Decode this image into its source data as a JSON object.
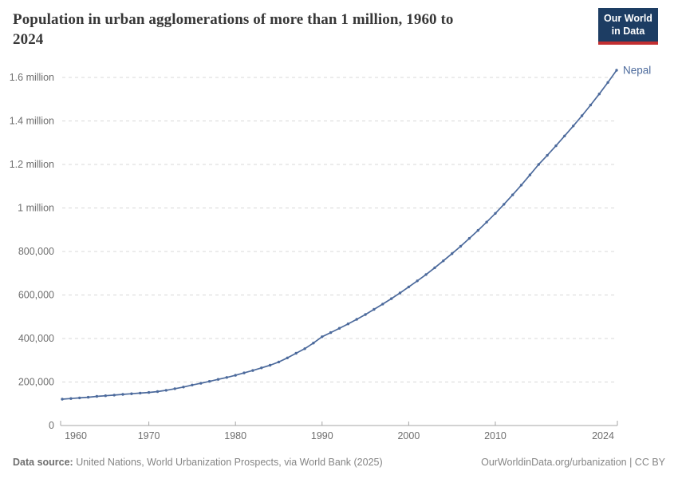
{
  "header": {
    "title_line1": "Population in urban agglomerations of more than 1 million, 1960 to",
    "title_line2": "2024",
    "logo": {
      "line1": "Our World",
      "line2": "in Data",
      "bg_color": "#1d3d63",
      "accent_color": "#c22f31"
    }
  },
  "footer": {
    "source_label": "Data source:",
    "source_text": " United Nations, World Urbanization Prospects, via World Bank (2025)",
    "credit": "OurWorldinData.org/urbanization | CC BY"
  },
  "chart_data": {
    "type": "line",
    "title": "Population in urban agglomerations of more than 1 million, 1960 to 2024",
    "xlabel": "",
    "ylabel": "",
    "grid": "dashed-horizontal",
    "xlim": [
      1960,
      2024
    ],
    "ylim": [
      0,
      1600000
    ],
    "x_ticks": [
      1960,
      1970,
      1980,
      1990,
      2000,
      2010,
      2024
    ],
    "y_ticks": [
      {
        "value": 0,
        "label": "0"
      },
      {
        "value": 200000,
        "label": "200,000"
      },
      {
        "value": 400000,
        "label": "400,000"
      },
      {
        "value": 600000,
        "label": "600,000"
      },
      {
        "value": 800000,
        "label": "800,000"
      },
      {
        "value": 1000000,
        "label": "1 million"
      },
      {
        "value": 1200000,
        "label": "1.2 million"
      },
      {
        "value": 1400000,
        "label": "1.4 million"
      },
      {
        "value": 1600000,
        "label": "1.6 million"
      }
    ],
    "legend_position": "end-of-line-label",
    "series": [
      {
        "name": "Nepal",
        "color": "#4c6a9c",
        "x": [
          1960,
          1961,
          1962,
          1963,
          1964,
          1965,
          1966,
          1967,
          1968,
          1969,
          1970,
          1971,
          1972,
          1973,
          1974,
          1975,
          1976,
          1977,
          1978,
          1979,
          1980,
          1981,
          1982,
          1983,
          1984,
          1985,
          1986,
          1987,
          1988,
          1989,
          1990,
          1991,
          1992,
          1993,
          1994,
          1995,
          1996,
          1997,
          1998,
          1999,
          2000,
          2001,
          2002,
          2003,
          2004,
          2005,
          2006,
          2007,
          2008,
          2009,
          2010,
          2011,
          2012,
          2013,
          2014,
          2015,
          2016,
          2017,
          2018,
          2019,
          2020,
          2021,
          2022,
          2023,
          2024
        ],
        "values": [
          121000,
          124000,
          127000,
          130000,
          134000,
          137000,
          140000,
          143000,
          146000,
          149000,
          152000,
          156000,
          162000,
          169000,
          177000,
          186000,
          194000,
          203000,
          212000,
          221000,
          231000,
          242000,
          253000,
          265000,
          277000,
          292000,
          311000,
          332000,
          353000,
          379000,
          408000,
          427000,
          447000,
          467000,
          488000,
          510000,
          534000,
          558000,
          583000,
          609000,
          637000,
          665000,
          694000,
          725000,
          757000,
          790000,
          824000,
          860000,
          897000,
          935000,
          975000,
          1017000,
          1060000,
          1105000,
          1152000,
          1200000,
          1242000,
          1286000,
          1331000,
          1377000,
          1424000,
          1473000,
          1524000,
          1577000,
          1633000
        ]
      }
    ],
    "colors": {
      "gridline": "#d8d8d8",
      "axis": "#a5a5a5",
      "tick_label": "#6e6e6e"
    }
  }
}
